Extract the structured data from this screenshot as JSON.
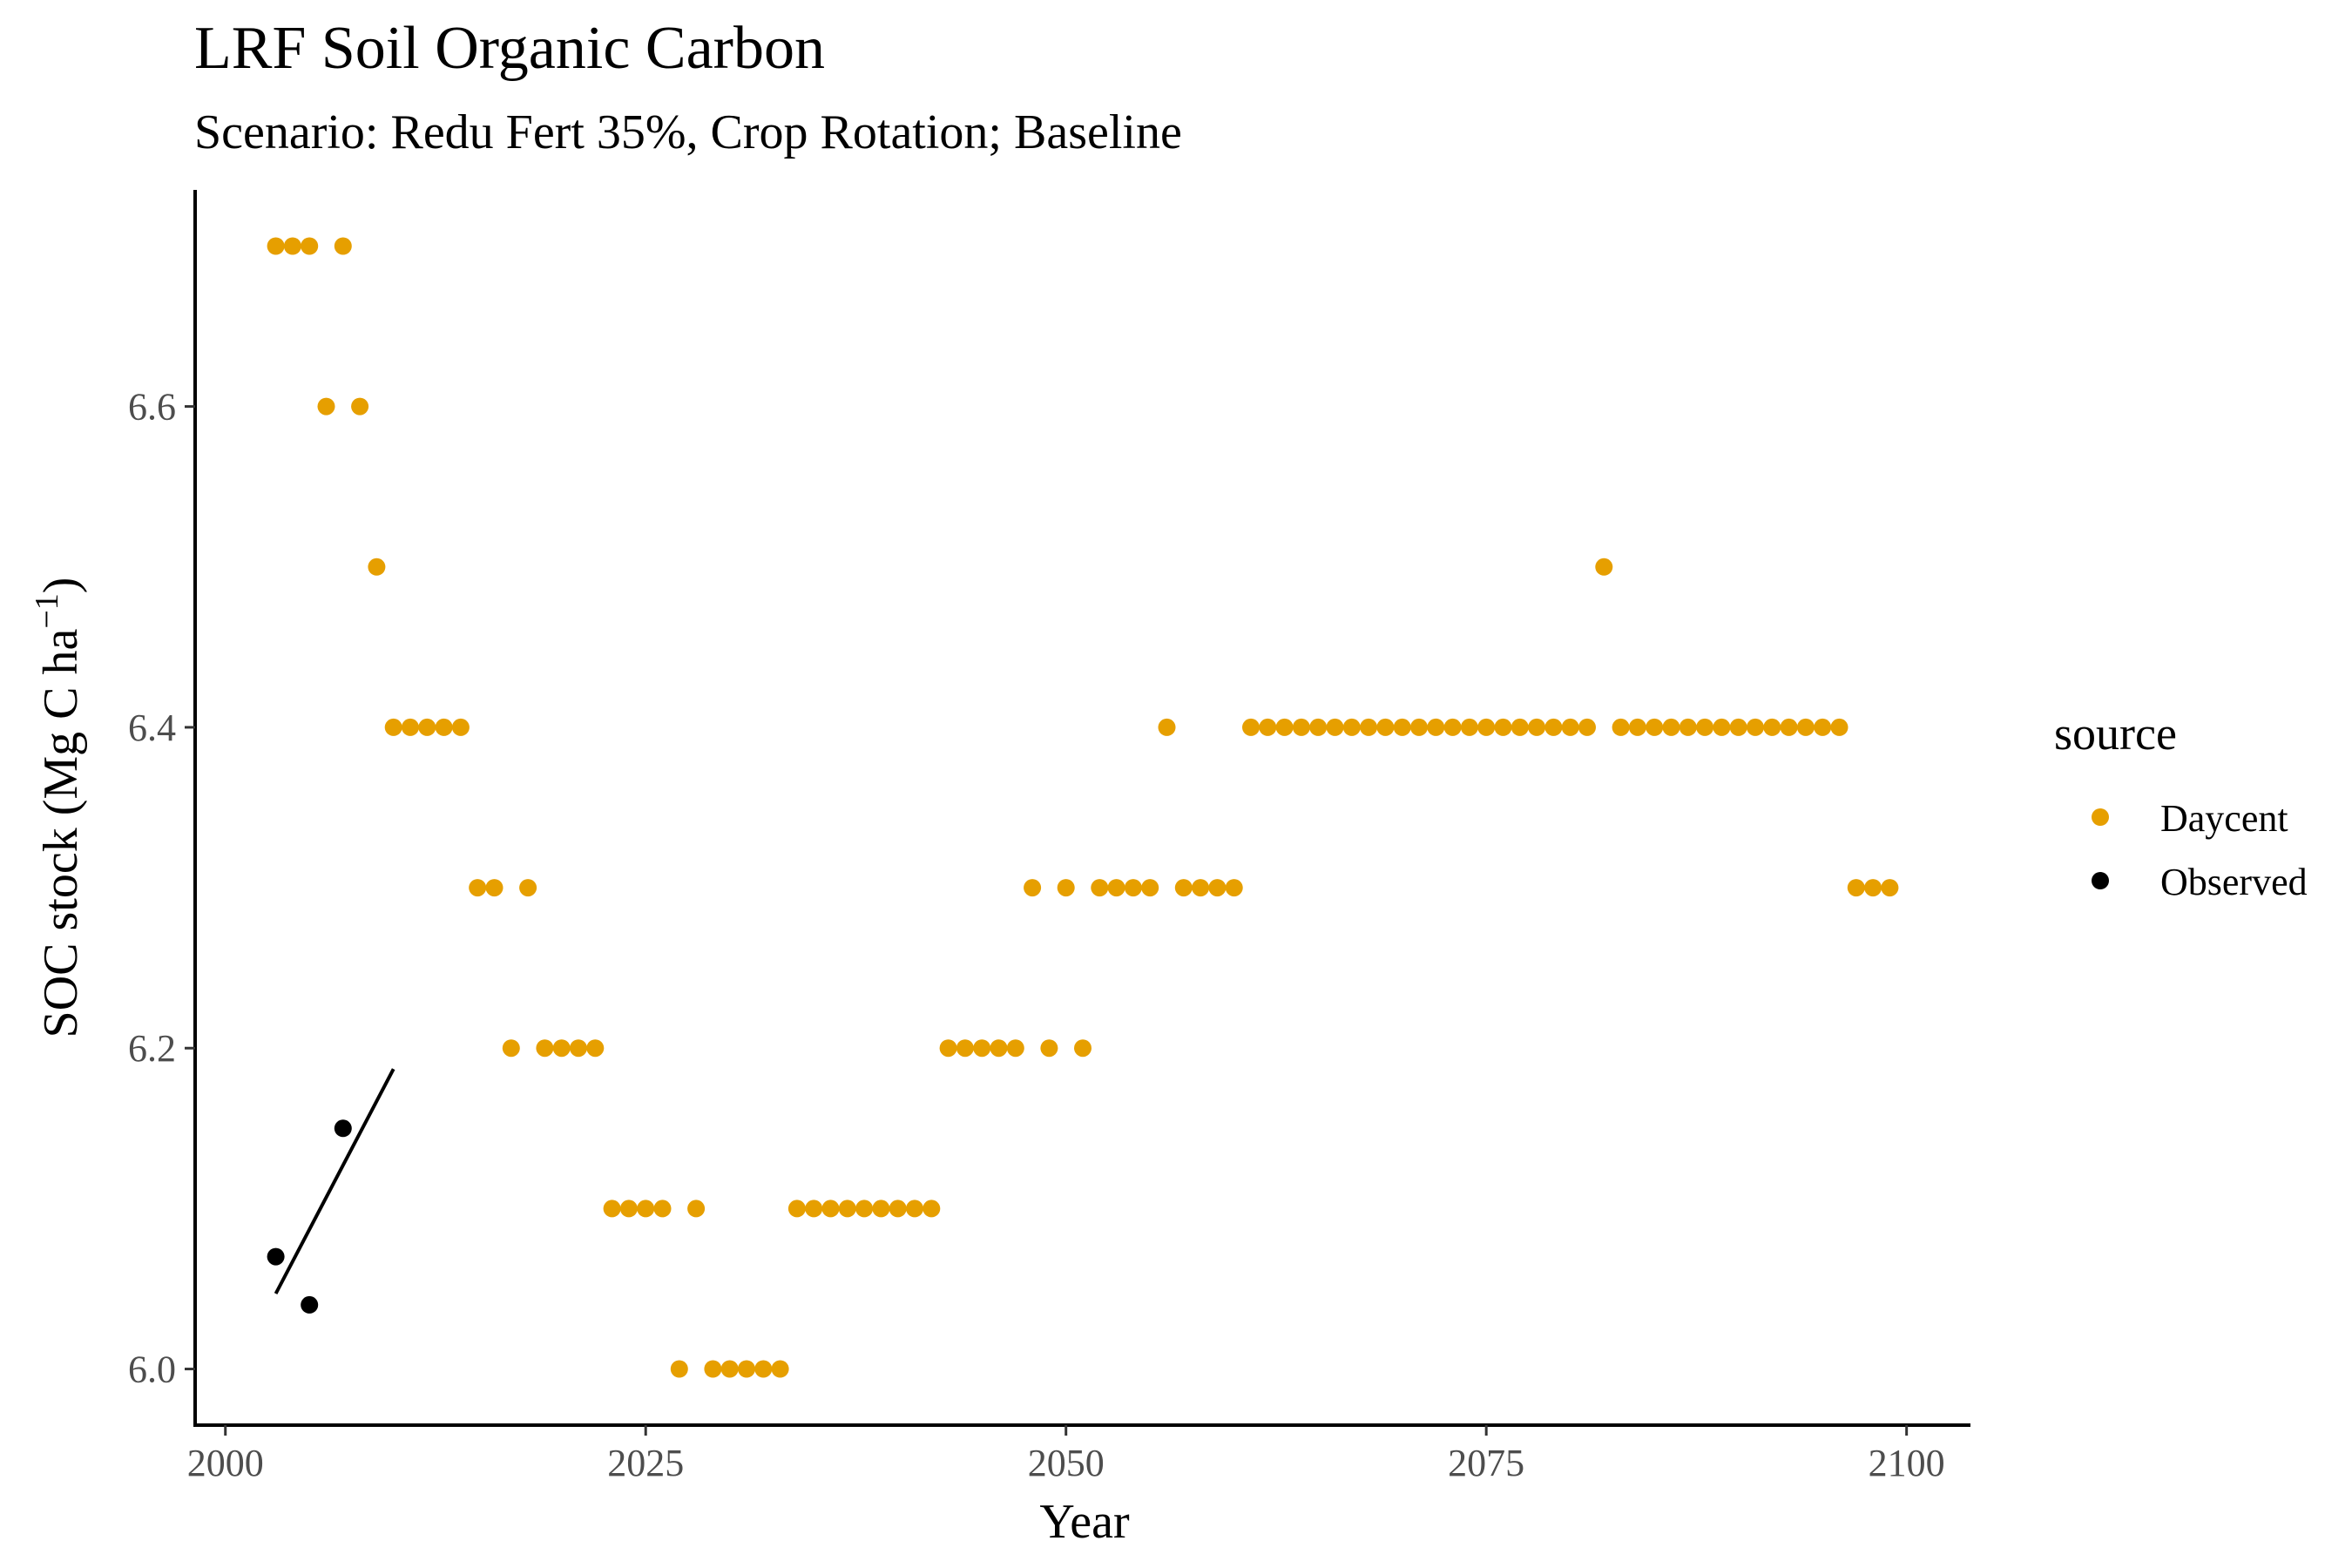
{
  "chart_data": {
    "type": "scatter",
    "title": "LRF Soil Organic Carbon",
    "subtitle": "Scenario: Redu Fert 35%, Crop Rotation; Baseline",
    "xlabel": "Year",
    "ylabel_main": "SOC stock (Mg C ha",
    "ylabel_sup": "−1",
    "ylabel_end": ")",
    "xlim": [
      1998.2,
      2103.8
    ],
    "ylim": [
      5.965,
      6.735
    ],
    "x_ticks": [
      2000,
      2025,
      2050,
      2075,
      2100
    ],
    "x_tick_labels": [
      "2000",
      "2025",
      "2050",
      "2075",
      "2100"
    ],
    "y_ticks": [
      6.0,
      6.2,
      6.4,
      6.6
    ],
    "y_tick_labels": [
      "6.0",
      "6.2",
      "6.4",
      "6.6"
    ],
    "grid": false,
    "legend": {
      "title": "source",
      "position": "right",
      "entries": [
        {
          "label": "Daycent",
          "color": "#E69F00"
        },
        {
          "label": "Observed",
          "color": "#000000"
        }
      ]
    },
    "series": [
      {
        "name": "Daycent",
        "color": "#E69F00",
        "x": [
          2003,
          2004,
          2005,
          2006,
          2007,
          2008,
          2009,
          2010,
          2011,
          2012,
          2013,
          2014,
          2015,
          2016,
          2017,
          2018,
          2019,
          2020,
          2021,
          2022,
          2023,
          2024,
          2025,
          2026,
          2027,
          2028,
          2029,
          2030,
          2031,
          2032,
          2033,
          2034,
          2035,
          2036,
          2037,
          2038,
          2039,
          2040,
          2041,
          2042,
          2043,
          2044,
          2045,
          2046,
          2047,
          2048,
          2049,
          2050,
          2051,
          2052,
          2053,
          2054,
          2055,
          2056,
          2057,
          2058,
          2059,
          2060,
          2061,
          2062,
          2063,
          2064,
          2065,
          2066,
          2067,
          2068,
          2069,
          2070,
          2071,
          2072,
          2073,
          2074,
          2075,
          2076,
          2077,
          2078,
          2079,
          2080,
          2081,
          2082,
          2083,
          2084,
          2085,
          2086,
          2087,
          2088,
          2089,
          2090,
          2091,
          2092,
          2093,
          2094,
          2095,
          2096,
          2097,
          2098,
          2099
        ],
        "y": [
          6.7,
          6.7,
          6.7,
          6.6,
          6.7,
          6.6,
          6.5,
          6.4,
          6.4,
          6.4,
          6.4,
          6.4,
          6.3,
          6.3,
          6.2,
          6.3,
          6.2,
          6.2,
          6.2,
          6.2,
          6.1,
          6.1,
          6.1,
          6.1,
          6.0,
          6.1,
          6.0,
          6.0,
          6.0,
          6.0,
          6.0,
          6.1,
          6.1,
          6.1,
          6.1,
          6.1,
          6.1,
          6.1,
          6.1,
          6.1,
          6.2,
          6.2,
          6.2,
          6.2,
          6.2,
          6.3,
          6.2,
          6.3,
          6.2,
          6.3,
          6.3,
          6.3,
          6.3,
          6.4,
          6.3,
          6.3,
          6.3,
          6.3,
          6.4,
          6.4,
          6.4,
          6.4,
          6.4,
          6.4,
          6.4,
          6.4,
          6.4,
          6.4,
          6.4,
          6.4,
          6.4,
          6.4,
          6.4,
          6.4,
          6.4,
          6.4,
          6.4,
          6.4,
          6.4,
          6.5,
          6.4,
          6.4,
          6.4,
          6.4,
          6.4,
          6.4,
          6.4,
          6.4,
          6.4,
          6.4,
          6.4,
          6.4,
          6.4,
          6.4,
          6.3,
          6.3,
          6.3
        ]
      },
      {
        "name": "Observed",
        "color": "#000000",
        "x": [
          2003,
          2005,
          2007
        ],
        "y": [
          6.07,
          6.04,
          6.15
        ],
        "fit_line": {
          "x": [
            2003,
            2010
          ],
          "y": [
            6.047,
            6.187
          ]
        }
      }
    ]
  }
}
